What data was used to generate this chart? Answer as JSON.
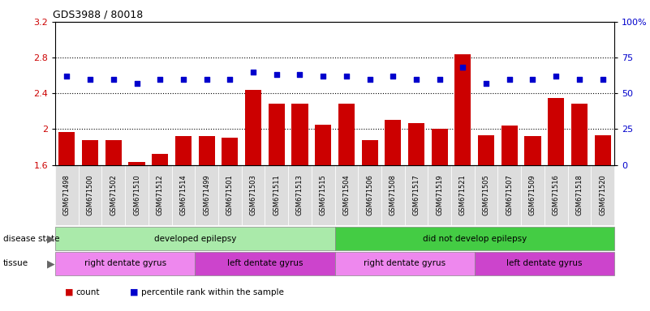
{
  "title": "GDS3988 / 80018",
  "samples": [
    "GSM671498",
    "GSM671500",
    "GSM671502",
    "GSM671510",
    "GSM671512",
    "GSM671514",
    "GSM671499",
    "GSM671501",
    "GSM671503",
    "GSM671511",
    "GSM671513",
    "GSM671515",
    "GSM671504",
    "GSM671506",
    "GSM671508",
    "GSM671517",
    "GSM671519",
    "GSM671521",
    "GSM671505",
    "GSM671507",
    "GSM671509",
    "GSM671516",
    "GSM671518",
    "GSM671520"
  ],
  "bar_values": [
    1.97,
    1.88,
    1.88,
    1.63,
    1.72,
    1.92,
    1.92,
    1.9,
    2.44,
    2.28,
    2.28,
    2.05,
    2.28,
    1.88,
    2.1,
    2.07,
    2.0,
    2.84,
    1.93,
    2.04,
    1.92,
    2.35,
    2.28,
    1.93
  ],
  "dot_values": [
    62,
    60,
    60,
    57,
    60,
    60,
    60,
    60,
    65,
    63,
    63,
    62,
    62,
    60,
    62,
    60,
    60,
    68,
    57,
    60,
    60,
    62,
    60,
    60
  ],
  "ylim_left": [
    1.6,
    3.2
  ],
  "ylim_right": [
    0,
    100
  ],
  "yticks_left": [
    1.6,
    2.0,
    2.4,
    2.8,
    3.2
  ],
  "ytick_labels_left": [
    "1.6",
    "2",
    "2.4",
    "2.8",
    "3.2"
  ],
  "yticks_right": [
    0,
    25,
    50,
    75,
    100
  ],
  "ytick_labels_right": [
    "0",
    "25",
    "50",
    "75",
    "100%"
  ],
  "bar_color": "#cc0000",
  "dot_color": "#0000cc",
  "bar_bottom": 1.6,
  "disease_state_groups": [
    {
      "label": "developed epilepsy",
      "start": 0,
      "end": 12,
      "color": "#aaeaaa"
    },
    {
      "label": "did not develop epilepsy",
      "start": 12,
      "end": 24,
      "color": "#44cc44"
    }
  ],
  "tissue_groups": [
    {
      "label": "right dentate gyrus",
      "start": 0,
      "end": 6,
      "color": "#ee88ee"
    },
    {
      "label": "left dentate gyrus",
      "start": 6,
      "end": 12,
      "color": "#cc44cc"
    },
    {
      "label": "right dentate gyrus",
      "start": 12,
      "end": 18,
      "color": "#ee88ee"
    },
    {
      "label": "left dentate gyrus",
      "start": 18,
      "end": 24,
      "color": "#cc44cc"
    }
  ],
  "legend_items": [
    {
      "label": "count",
      "color": "#cc0000"
    },
    {
      "label": "percentile rank within the sample",
      "color": "#0000cc"
    }
  ],
  "hline_values": [
    2.0,
    2.4,
    2.8
  ],
  "bg_color": "#ffffff",
  "tick_label_color_left": "#cc0000",
  "tick_label_color_right": "#0000cc",
  "xtick_bg": "#dddddd"
}
